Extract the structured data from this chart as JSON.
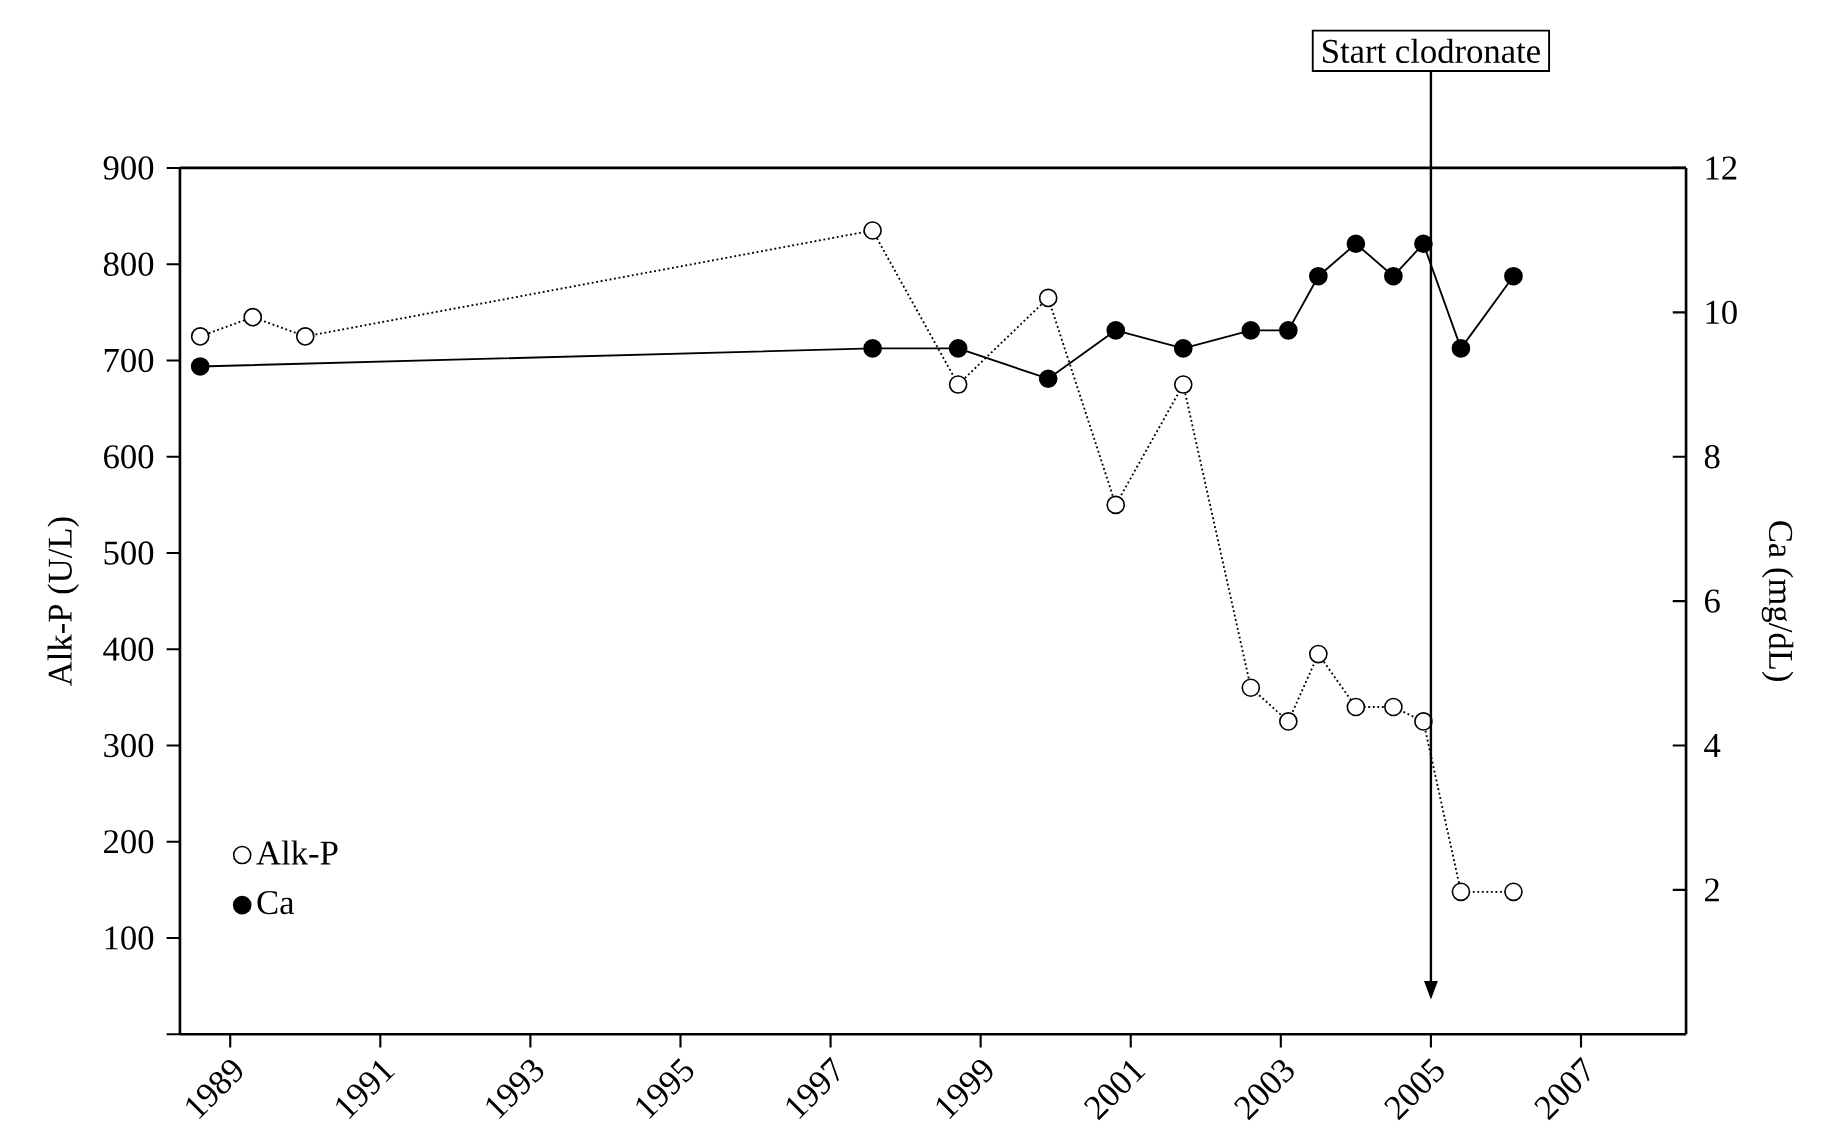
{
  "chart_data": {
    "type": "line",
    "ylabel": "Alk-P (U/L)",
    "y2label": "Ca (mg/dL)",
    "xlim": [
      1988.33,
      2008.4
    ],
    "xticks": [
      1989,
      1991,
      1993,
      1995,
      1997,
      1999,
      2001,
      2003,
      2005,
      2007
    ],
    "ylim": [
      0,
      900
    ],
    "yticks": [
      {
        "value": 0,
        "label": null
      },
      100,
      200,
      300,
      400,
      500,
      600,
      700,
      800,
      900
    ],
    "y2lim": [
      0,
      12
    ],
    "y2ticks": [
      2,
      4,
      6,
      8,
      10,
      12
    ],
    "marker": "circle",
    "legend": "bottom left",
    "ref_lines": [
      {
        "axis": "x",
        "value": 2005,
        "label": "Start clodronate",
        "color": "#000000"
      }
    ],
    "series": [
      {
        "name": "Alk-P",
        "color": "#000000",
        "line_style": "dotted",
        "axis": "y",
        "x": [
          1988.6,
          1989.3,
          1990.0,
          1997.56,
          1998.7,
          1999.9,
          2000.8,
          2001.7,
          2002.6,
          2003.1,
          2003.5,
          2004.0,
          2004.5,
          2004.9,
          2005.4,
          2006.1
        ],
        "values": [
          725,
          745,
          725,
          835,
          675,
          765,
          550,
          675,
          360,
          325,
          395,
          340,
          340,
          325,
          148,
          148
        ]
      },
      {
        "name": "Ca",
        "color": "#000000",
        "line_style": "solid",
        "axis": "y2",
        "x": [
          1988.6,
          1997.56,
          1998.7,
          1999.9,
          2000.8,
          2001.7,
          2002.6,
          2003.1,
          2003.5,
          2004.0,
          2004.5,
          2004.9,
          2005.4,
          2006.1
        ],
        "values": [
          9.25,
          9.5,
          9.5,
          9.08,
          9.75,
          9.5,
          9.75,
          9.75,
          10.5,
          10.95,
          10.5,
          10.95,
          9.5,
          10.5
        ]
      }
    ]
  }
}
